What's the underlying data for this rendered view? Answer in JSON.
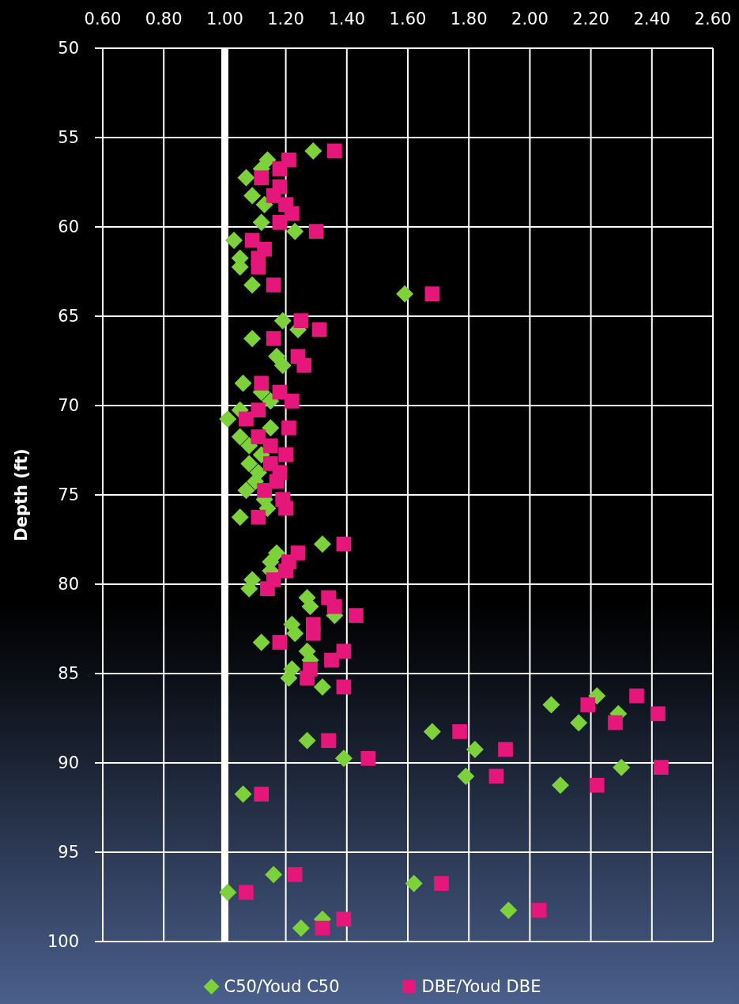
{
  "chart_data": {
    "type": "scatter",
    "ylabel": "Depth (ft)",
    "xlim": [
      0.6,
      2.6
    ],
    "ylim": [
      100,
      50
    ],
    "xticks": [
      {
        "value": 0.6,
        "label": "0.60"
      },
      {
        "value": 0.8,
        "label": "0.80"
      },
      {
        "value": 1.0,
        "label": "1.00"
      },
      {
        "value": 1.2,
        "label": "1.20"
      },
      {
        "value": 1.4,
        "label": "1.40"
      },
      {
        "value": 1.6,
        "label": "1.60"
      },
      {
        "value": 1.8,
        "label": "1.80"
      },
      {
        "value": 2.0,
        "label": "2.00"
      },
      {
        "value": 2.2,
        "label": "2.20"
      },
      {
        "value": 2.4,
        "label": "2.40"
      },
      {
        "value": 2.6,
        "label": "2.60"
      }
    ],
    "yticks": [
      50,
      55,
      60,
      65,
      70,
      75,
      80,
      85,
      90,
      95,
      100
    ],
    "grid": true,
    "legend": "bottom",
    "ref_lines": [
      {
        "axis": "x",
        "value": 1.0,
        "color": "#ffffff"
      }
    ],
    "series": [
      {
        "name": "C50/Youd C50",
        "color": "#7dd13b",
        "marker": "diamond",
        "x": [
          1.29,
          1.14,
          1.12,
          1.07,
          1.09,
          1.13,
          1.12,
          1.23,
          1.03,
          1.05,
          1.05,
          1.09,
          1.59,
          1.19,
          1.24,
          1.09,
          1.17,
          1.19,
          1.06,
          1.12,
          1.15,
          1.05,
          1.01,
          1.15,
          1.05,
          1.08,
          1.12,
          1.08,
          1.11,
          1.1,
          1.07,
          1.13,
          1.14,
          1.05,
          1.32,
          1.17,
          1.15,
          1.15,
          1.09,
          1.08,
          1.27,
          1.28,
          1.36,
          1.22,
          1.23,
          1.12,
          1.27,
          1.28,
          1.22,
          1.21,
          1.32,
          2.22,
          2.07,
          2.29,
          2.16,
          1.68,
          1.27,
          1.82,
          1.39,
          2.3,
          1.79,
          2.1,
          1.06,
          1.16,
          1.62,
          1.01,
          1.93,
          1.32,
          1.25
        ],
        "values": [
          55.75,
          56.25,
          56.75,
          57.25,
          58.25,
          58.75,
          59.75,
          60.25,
          60.75,
          61.75,
          62.25,
          63.25,
          63.75,
          65.25,
          65.75,
          66.25,
          67.25,
          67.75,
          68.75,
          69.25,
          69.75,
          70.25,
          70.75,
          71.25,
          71.75,
          72.25,
          72.75,
          73.25,
          73.75,
          74.25,
          74.75,
          75.25,
          75.75,
          76.25,
          77.75,
          78.25,
          78.75,
          79.25,
          79.75,
          80.25,
          80.75,
          81.25,
          81.75,
          82.25,
          82.75,
          83.25,
          83.75,
          84.25,
          84.75,
          85.25,
          85.75,
          86.25,
          86.75,
          87.25,
          87.75,
          88.25,
          88.75,
          89.25,
          89.75,
          90.25,
          90.75,
          91.25,
          91.75,
          96.25,
          96.75,
          97.25,
          98.25,
          98.75,
          99.25
        ]
      },
      {
        "name": "DBE/Youd DBE",
        "color": "#e6177a",
        "marker": "square",
        "x": [
          1.36,
          1.21,
          1.18,
          1.12,
          1.18,
          1.16,
          1.2,
          1.22,
          1.18,
          1.3,
          1.09,
          1.13,
          1.11,
          1.11,
          1.16,
          1.68,
          1.25,
          1.31,
          1.16,
          1.24,
          1.26,
          1.12,
          1.18,
          1.22,
          1.11,
          1.07,
          1.21,
          1.11,
          1.15,
          1.2,
          1.15,
          1.18,
          1.17,
          1.13,
          1.19,
          1.2,
          1.11,
          1.39,
          1.24,
          1.21,
          1.2,
          1.16,
          1.14,
          1.34,
          1.36,
          1.43,
          1.29,
          1.29,
          1.18,
          1.39,
          1.35,
          1.28,
          1.27,
          1.39,
          2.35,
          2.19,
          2.42,
          2.28,
          1.77,
          1.34,
          1.92,
          1.47,
          2.43,
          1.89,
          2.22,
          1.12,
          1.23,
          1.71,
          1.07,
          2.03,
          1.39,
          1.32
        ],
        "values": [
          55.75,
          56.25,
          56.75,
          57.25,
          57.75,
          58.25,
          58.75,
          59.25,
          59.75,
          60.25,
          60.75,
          61.25,
          61.75,
          62.25,
          63.25,
          63.75,
          65.25,
          65.75,
          66.25,
          67.25,
          67.75,
          68.75,
          69.25,
          69.75,
          70.25,
          70.75,
          71.25,
          71.75,
          72.25,
          72.75,
          73.25,
          73.75,
          74.25,
          74.75,
          75.25,
          75.75,
          76.25,
          77.75,
          78.25,
          78.75,
          79.25,
          79.75,
          80.25,
          80.75,
          81.25,
          81.75,
          82.25,
          82.75,
          83.25,
          83.75,
          84.25,
          84.75,
          85.25,
          85.75,
          86.25,
          86.75,
          87.25,
          87.75,
          88.25,
          88.75,
          89.25,
          89.75,
          90.25,
          90.75,
          91.25,
          91.75,
          96.25,
          96.75,
          97.25,
          98.25,
          98.75,
          99.25
        ]
      }
    ]
  }
}
